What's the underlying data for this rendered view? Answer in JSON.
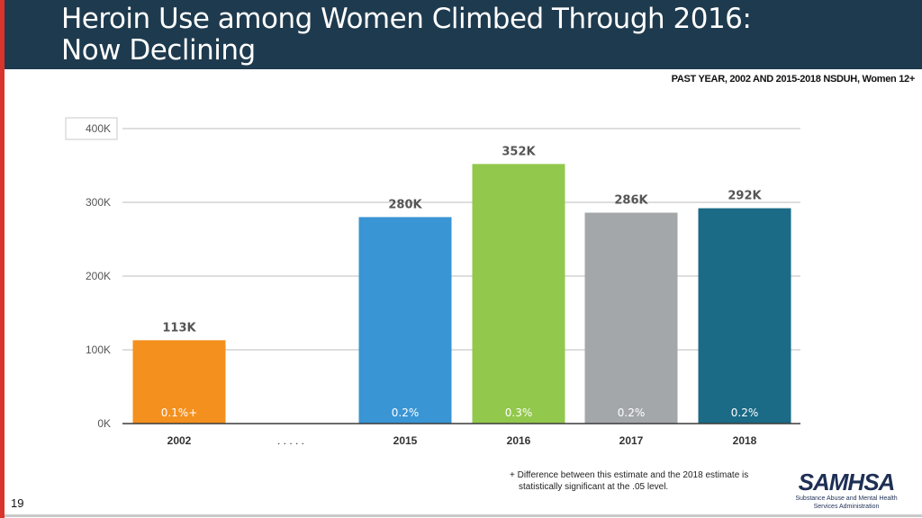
{
  "slide": {
    "title_line1": "Heroin Use among Women Climbed Through 2016:",
    "title_line2": "Now Declining",
    "subtitle": "PAST YEAR, 2002 AND 2015-2018 NSDUH, Women 12+",
    "footnote_line1": "+ Difference between this estimate and the 2018 estimate is",
    "footnote_line2": "statistically significant at the .05 level.",
    "page_number": "19",
    "logo_text": "SAMHSA",
    "logo_sub_line1": "Substance Abuse and Mental Health",
    "logo_sub_line2": "Services Administration"
  },
  "chart_data": {
    "type": "bar",
    "title": "Heroin Use among Women Climbed Through 2016: Now Declining",
    "categories": [
      "2002",
      "2015",
      "2016",
      "2017",
      "2018"
    ],
    "gap_label": ". . . . .",
    "values": [
      113000,
      280000,
      352000,
      286000,
      292000
    ],
    "value_labels": [
      "113K",
      "280K",
      "352K",
      "286K",
      "292K"
    ],
    "percent_labels": [
      "0.1%+",
      "0.2%",
      "0.3%",
      "0.2%",
      "0.2%"
    ],
    "colors": [
      "#f4901e",
      "#3a95d4",
      "#92c84c",
      "#a4a7aa",
      "#1b6a86"
    ],
    "yticks": [
      0,
      100000,
      200000,
      300000,
      400000
    ],
    "ytick_labels": [
      "0K",
      "100K",
      "200K",
      "300K",
      "400K"
    ],
    "ylim": [
      0,
      400000
    ],
    "xlabel": "",
    "ylabel": "",
    "grid": true
  }
}
